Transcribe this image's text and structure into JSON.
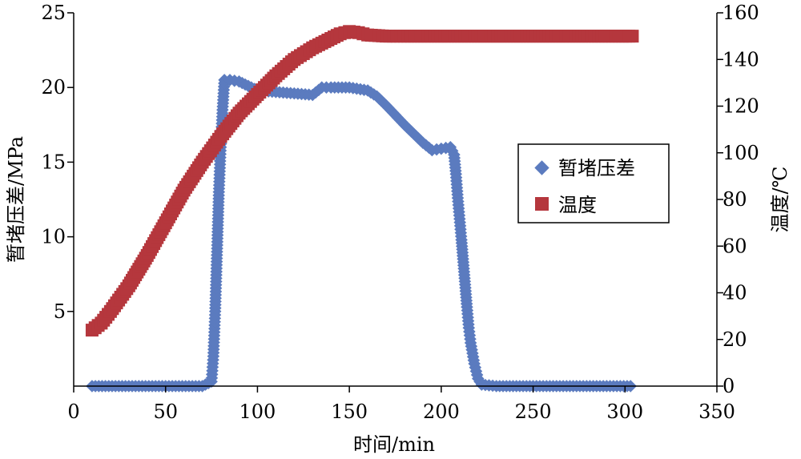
{
  "chart_data": {
    "type": "scatter",
    "xlabel": "时间/min",
    "ylabel_left": "暂堵压差/MPa",
    "ylabel_right": "温度/℃",
    "xlim": [
      0,
      350
    ],
    "x_ticks": [
      0,
      50,
      100,
      150,
      200,
      250,
      300,
      350
    ],
    "ylim_left": [
      0,
      25
    ],
    "y_ticks_left": [
      5,
      10,
      15,
      20,
      25
    ],
    "ylim_right": [
      0,
      160
    ],
    "y_ticks_right": [
      0,
      20,
      40,
      60,
      80,
      100,
      120,
      140,
      160
    ],
    "legend_position": "right",
    "grid": false,
    "series": [
      {
        "name": "暂堵压差",
        "axis": "left",
        "marker": "diamond",
        "color": "#5B7BBF",
        "points": [
          [
            10,
            0
          ],
          [
            30,
            0
          ],
          [
            50,
            0
          ],
          [
            70,
            0
          ],
          [
            75,
            0.3
          ],
          [
            76,
            2
          ],
          [
            77,
            5
          ],
          [
            78,
            9
          ],
          [
            79,
            13
          ],
          [
            80,
            16
          ],
          [
            81,
            18.5
          ],
          [
            82,
            20.5
          ],
          [
            85,
            20.5
          ],
          [
            90,
            20.4
          ],
          [
            95,
            20.1
          ],
          [
            100,
            19.8
          ],
          [
            110,
            19.7
          ],
          [
            120,
            19.6
          ],
          [
            130,
            19.5
          ],
          [
            135,
            20
          ],
          [
            140,
            20
          ],
          [
            150,
            20
          ],
          [
            160,
            19.8
          ],
          [
            165,
            19.4
          ],
          [
            170,
            18.8
          ],
          [
            180,
            17.5
          ],
          [
            190,
            16.3
          ],
          [
            195,
            15.8
          ],
          [
            200,
            15.9
          ],
          [
            205,
            16
          ],
          [
            207,
            15.5
          ],
          [
            208,
            14.2
          ],
          [
            209,
            12.6
          ],
          [
            210,
            11.2
          ],
          [
            211,
            9.8
          ],
          [
            212,
            8.3
          ],
          [
            213,
            6.8
          ],
          [
            214,
            5.3
          ],
          [
            215,
            3.9
          ],
          [
            216,
            2.9
          ],
          [
            217,
            2.2
          ],
          [
            218,
            1.5
          ],
          [
            219,
            1
          ],
          [
            220,
            0.5
          ],
          [
            222,
            0.1
          ],
          [
            230,
            0
          ],
          [
            250,
            0
          ],
          [
            270,
            0
          ],
          [
            290,
            0
          ],
          [
            303,
            0
          ]
        ]
      },
      {
        "name": "温度",
        "axis": "right",
        "marker": "square",
        "color": "#B5373D",
        "points": [
          [
            10,
            24
          ],
          [
            15,
            27
          ],
          [
            20,
            32
          ],
          [
            30,
            43
          ],
          [
            40,
            56
          ],
          [
            50,
            70
          ],
          [
            60,
            84
          ],
          [
            70,
            96
          ],
          [
            80,
            107
          ],
          [
            90,
            117
          ],
          [
            100,
            125
          ],
          [
            110,
            133
          ],
          [
            120,
            140
          ],
          [
            130,
            145
          ],
          [
            140,
            149
          ],
          [
            145,
            151
          ],
          [
            150,
            152
          ],
          [
            155,
            151.5
          ],
          [
            160,
            150.5
          ],
          [
            170,
            150
          ],
          [
            180,
            150
          ],
          [
            200,
            150
          ],
          [
            220,
            150
          ],
          [
            250,
            150
          ],
          [
            280,
            150
          ],
          [
            304,
            150
          ]
        ]
      }
    ]
  }
}
